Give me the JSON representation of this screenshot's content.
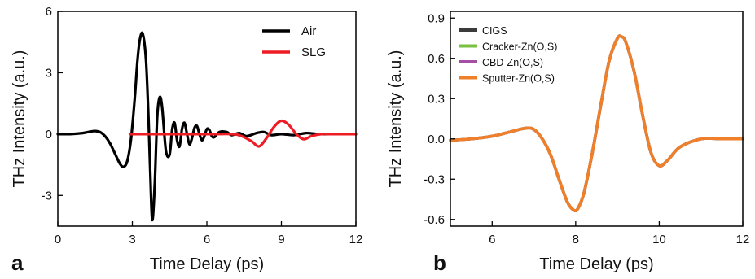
{
  "chart_data": [
    {
      "panel_label": "a",
      "type": "line",
      "xlabel": "Time Delay (ps)",
      "ylabel": "THz Intensity (a.u.)",
      "xlim": [
        0,
        12
      ],
      "ylim": [
        -4.5,
        6
      ],
      "xticks": [
        0,
        3,
        6,
        9,
        12
      ],
      "yticks": [
        -3,
        0,
        3,
        6
      ],
      "legend_position": "top-right",
      "series": [
        {
          "name": "Air",
          "color": "#000000",
          "x": [
            0.0,
            0.5,
            1.0,
            1.3,
            1.5,
            1.7,
            1.9,
            2.1,
            2.3,
            2.5,
            2.65,
            2.8,
            2.95,
            3.1,
            3.2,
            3.3,
            3.42,
            3.55,
            3.65,
            3.72,
            3.8,
            3.9,
            4.0,
            4.1,
            4.2,
            4.35,
            4.5,
            4.6,
            4.7,
            4.8,
            4.9,
            5.0,
            5.1,
            5.2,
            5.3,
            5.4,
            5.5,
            5.6,
            5.7,
            5.8,
            5.9,
            6.0,
            6.1,
            6.2,
            6.3,
            6.5,
            6.8,
            7.0,
            7.3,
            7.6,
            8.0,
            8.3,
            8.6,
            9.0,
            9.5,
            10.0,
            10.5,
            11.0,
            11.5,
            12.0
          ],
          "y": [
            0.0,
            0.0,
            0.05,
            0.12,
            0.15,
            0.1,
            -0.1,
            -0.45,
            -0.95,
            -1.45,
            -1.6,
            -1.3,
            -0.2,
            1.8,
            3.5,
            4.6,
            4.9,
            3.6,
            0.8,
            -1.8,
            -4.2,
            -2.5,
            0.8,
            1.8,
            1.3,
            -0.8,
            -1.0,
            0.2,
            0.55,
            -0.3,
            -0.6,
            0.25,
            0.55,
            0.0,
            -0.5,
            -0.2,
            0.3,
            0.4,
            0.0,
            -0.3,
            -0.1,
            0.25,
            0.2,
            -0.1,
            -0.15,
            0.1,
            0.1,
            -0.05,
            0.05,
            -0.1,
            0.05,
            0.1,
            -0.05,
            0.0,
            -0.05,
            0.05,
            0.0,
            0.0,
            0.0,
            0.0
          ]
        },
        {
          "name": "SLG",
          "color": "#ee1c25",
          "x": [
            2.9,
            6.0,
            7.0,
            7.4,
            7.8,
            8.1,
            8.4,
            8.7,
            9.0,
            9.3,
            9.6,
            9.9,
            10.2,
            10.6,
            11.0,
            12.0
          ],
          "y": [
            0.0,
            0.0,
            0.0,
            -0.1,
            -0.35,
            -0.6,
            -0.2,
            0.35,
            0.65,
            0.45,
            0.0,
            -0.25,
            -0.1,
            0.0,
            0.0,
            0.0
          ]
        }
      ]
    },
    {
      "panel_label": "b",
      "type": "line",
      "xlabel": "Time Delay (ps)",
      "ylabel": "THz Intensity (a.u.)",
      "xlim": [
        5,
        12
      ],
      "ylim": [
        -0.65,
        0.95
      ],
      "xticks": [
        6,
        8,
        10,
        12
      ],
      "yticks": [
        -0.6,
        -0.3,
        0.0,
        0.3,
        0.6,
        0.9
      ],
      "ytick_labels": [
        "-0.6",
        "-0.3",
        "0.0",
        "0.3",
        "0.6",
        "0.9"
      ],
      "legend_position": "top-left",
      "x": [
        5.0,
        5.5,
        6.0,
        6.4,
        6.8,
        7.0,
        7.2,
        7.4,
        7.6,
        7.8,
        7.95,
        8.05,
        8.2,
        8.4,
        8.6,
        8.8,
        9.0,
        9.1,
        9.2,
        9.4,
        9.6,
        9.8,
        10.0,
        10.2,
        10.5,
        11.0,
        11.5,
        12.0
      ],
      "series": [
        {
          "name": "CIGS",
          "color": "#3b3b3b",
          "y": [
            -0.01,
            0.0,
            0.02,
            0.05,
            0.08,
            0.07,
            0.0,
            -0.12,
            -0.3,
            -0.47,
            -0.53,
            -0.52,
            -0.4,
            -0.1,
            0.25,
            0.58,
            0.75,
            0.76,
            0.72,
            0.5,
            0.18,
            -0.1,
            -0.2,
            -0.16,
            -0.06,
            0.0,
            0.0,
            0.0
          ]
        },
        {
          "name": "Cracker-Zn(O,S)",
          "color": "#7ac143",
          "y": [
            -0.01,
            0.0,
            0.02,
            0.05,
            0.08,
            0.07,
            0.0,
            -0.12,
            -0.3,
            -0.47,
            -0.53,
            -0.52,
            -0.4,
            -0.1,
            0.25,
            0.58,
            0.75,
            0.76,
            0.72,
            0.5,
            0.18,
            -0.1,
            -0.2,
            -0.16,
            -0.06,
            0.0,
            0.0,
            0.0
          ]
        },
        {
          "name": "CBD-Zn(O,S)",
          "color": "#a54ea5",
          "y": [
            -0.01,
            0.0,
            0.02,
            0.05,
            0.08,
            0.07,
            0.0,
            -0.12,
            -0.3,
            -0.47,
            -0.53,
            -0.52,
            -0.4,
            -0.1,
            0.25,
            0.58,
            0.75,
            0.76,
            0.72,
            0.5,
            0.18,
            -0.1,
            -0.2,
            -0.16,
            -0.06,
            0.0,
            0.0,
            0.0
          ]
        },
        {
          "name": "Sputter-Zn(O,S)",
          "color": "#f07f2a",
          "y": [
            -0.01,
            0.0,
            0.02,
            0.05,
            0.08,
            0.07,
            0.0,
            -0.12,
            -0.3,
            -0.47,
            -0.53,
            -0.52,
            -0.4,
            -0.1,
            0.25,
            0.58,
            0.75,
            0.76,
            0.72,
            0.5,
            0.18,
            -0.1,
            -0.2,
            -0.16,
            -0.06,
            0.0,
            0.0,
            0.0
          ]
        }
      ]
    }
  ]
}
